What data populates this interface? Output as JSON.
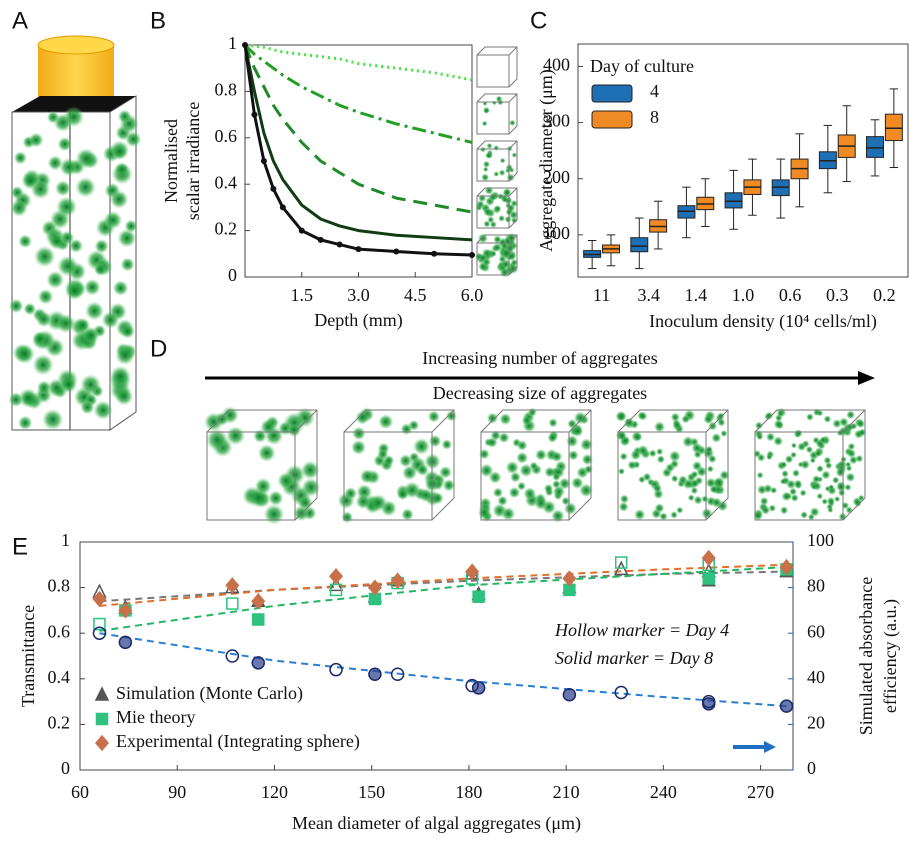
{
  "panel_labels": [
    "A",
    "B",
    "C",
    "D",
    "E"
  ],
  "panel_d": {
    "arrow_text": [
      "Increasing number of aggregates",
      "Decreasing size of aggregates"
    ]
  },
  "chart_data": [
    {
      "type": "line",
      "xlabel": "Depth (mm)",
      "ylabel": [
        "Normalised",
        "scalar irradiance"
      ],
      "x": [
        0,
        0.25,
        0.5,
        0.75,
        1,
        1.5,
        2,
        2.5,
        3,
        4,
        5,
        6
      ],
      "xlim": [
        0,
        6
      ],
      "ylim": [
        0,
        1
      ],
      "xticks": [
        1.5,
        {
          "value": 3,
          "label": "3.0"
        },
        4.5,
        {
          "value": 6,
          "label": "6.0"
        }
      ],
      "yticks": [
        0,
        0.2,
        0.4,
        0.6,
        0.8,
        1
      ],
      "series": [
        {
          "color": "#3ce63c",
          "style": "dotted",
          "values": [
            1,
            0.995,
            0.99,
            0.98,
            0.97,
            0.96,
            0.95,
            0.94,
            0.92,
            0.9,
            0.88,
            0.85
          ]
        },
        {
          "color": "#23a023",
          "style": "dashdot",
          "values": [
            1,
            0.96,
            0.93,
            0.9,
            0.87,
            0.82,
            0.78,
            0.74,
            0.71,
            0.66,
            0.62,
            0.58
          ]
        },
        {
          "color": "#1f8a28",
          "style": "dashed",
          "values": [
            1,
            0.9,
            0.82,
            0.74,
            0.68,
            0.58,
            0.5,
            0.45,
            0.4,
            0.34,
            0.31,
            0.28
          ]
        },
        {
          "color": "#123d14",
          "style": "solid",
          "values": [
            1,
            0.8,
            0.62,
            0.5,
            0.42,
            0.31,
            0.25,
            0.22,
            0.2,
            0.18,
            0.17,
            0.16
          ]
        },
        {
          "color": "#111111",
          "style": "markers",
          "values": [
            1,
            0.7,
            0.5,
            0.38,
            0.3,
            0.2,
            0.16,
            0.14,
            0.12,
            0.11,
            0.1,
            0.095
          ]
        }
      ]
    },
    {
      "type": "box",
      "legend_title": "Day of culture",
      "legend": "upper left",
      "xlabel": "Inoculum density (10⁴ cells/ml)",
      "ylabel": "Aggregate diameter (μm)",
      "categories": [
        "11",
        "3.4",
        "1.4",
        "1.0",
        "0.6",
        "0.3",
        "0.2"
      ],
      "ylim": [
        25,
        440
      ],
      "yticks": [
        100,
        200,
        300,
        400
      ],
      "series": [
        {
          "name": "4",
          "color": "#1f6fb5",
          "whislo": [
            40,
            40,
            95,
            110,
            130,
            175,
            205
          ],
          "q1": [
            60,
            70,
            130,
            148,
            170,
            218,
            238
          ],
          "median": [
            65,
            80,
            142,
            160,
            185,
            232,
            255
          ],
          "q3": [
            72,
            95,
            152,
            175,
            198,
            248,
            275
          ],
          "whishi": [
            90,
            130,
            185,
            215,
            235,
            295,
            305
          ]
        },
        {
          "name": "8",
          "color": "#f08a24",
          "whislo": [
            45,
            75,
            115,
            135,
            150,
            195,
            220
          ],
          "q1": [
            68,
            105,
            145,
            172,
            200,
            238,
            268
          ],
          "median": [
            75,
            115,
            155,
            185,
            218,
            258,
            290
          ],
          "q3": [
            82,
            127,
            167,
            198,
            235,
            278,
            315
          ],
          "whishi": [
            100,
            160,
            200,
            235,
            280,
            330,
            360
          ]
        }
      ]
    },
    {
      "type": "scatter",
      "legend": "lower left",
      "xlabel": "Mean diameter of algal aggregates (μm)",
      "ylabel": "Transmittance",
      "y2label": [
        "Simulated absorbance",
        "efficiency (a.u.)"
      ],
      "annotations": [
        "Hollow marker = Day 4",
        "Solid marker = Day 8"
      ],
      "xlim": [
        60,
        280
      ],
      "xticks": [
        60,
        90,
        120,
        150,
        180,
        210,
        240,
        270
      ],
      "ylim": [
        0,
        1
      ],
      "yticks": [
        0,
        0.2,
        0.4,
        0.6,
        0.8,
        1
      ],
      "y2lim": [
        0,
        100
      ],
      "y2ticks": [
        0,
        20,
        40,
        60,
        80,
        100
      ],
      "series": [
        {
          "style": "dashed",
          "color": "#777777",
          "x": [
            66,
            120,
            180,
            240,
            278
          ],
          "values": [
            0.74,
            0.79,
            0.83,
            0.86,
            0.87
          ]
        },
        {
          "style": "dashed",
          "color": "#e0702a",
          "x": [
            66,
            120,
            180,
            240,
            278
          ],
          "values": [
            0.72,
            0.79,
            0.84,
            0.88,
            0.9
          ]
        },
        {
          "style": "dashed",
          "color": "#22b860",
          "x": [
            66,
            120,
            180,
            240,
            278
          ],
          "values": [
            0.61,
            0.72,
            0.81,
            0.86,
            0.89
          ]
        },
        {
          "style": "dashed",
          "color": "#2a7fd0",
          "axis": "y2",
          "x": [
            66,
            120,
            180,
            240,
            278
          ],
          "values": [
            60,
            48,
            39,
            32,
            28
          ]
        },
        {
          "name": "Simulation (Monte Carlo)",
          "color": "#555555",
          "marker": "triangle",
          "filled": true,
          "x": [
            74,
            115,
            151,
            183,
            211,
            254,
            278
          ],
          "values": [
            0.71,
            0.74,
            0.76,
            0.77,
            0.8,
            0.83,
            0.87
          ]
        },
        {
          "color": "#555555",
          "marker": "triangle",
          "filled": false,
          "x": [
            66,
            107,
            139,
            158,
            181,
            227,
            254
          ],
          "values": [
            0.78,
            0.8,
            0.81,
            0.83,
            0.86,
            0.88,
            0.87
          ]
        },
        {
          "name": "Mie theory",
          "color": "#2ec27e",
          "marker": "square",
          "filled": true,
          "x": [
            74,
            115,
            151,
            183,
            211,
            254,
            278
          ],
          "values": [
            0.7,
            0.66,
            0.75,
            0.76,
            0.79,
            0.84,
            0.88
          ]
        },
        {
          "color": "#2ec27e",
          "marker": "square",
          "filled": false,
          "x": [
            66,
            107,
            139,
            158,
            181,
            227,
            254
          ],
          "values": [
            0.64,
            0.73,
            0.79,
            0.82,
            0.84,
            0.91,
            0.9
          ]
        },
        {
          "name": "Experimental (Integrating sphere)",
          "color": "#c8704a",
          "marker": "diamond",
          "filled": true,
          "x": [
            66,
            74,
            107,
            115,
            139,
            151,
            158,
            181,
            211,
            254,
            278
          ],
          "values": [
            0.75,
            0.7,
            0.81,
            0.74,
            0.85,
            0.8,
            0.83,
            0.87,
            0.84,
            0.93,
            0.89
          ]
        },
        {
          "color": "#2b3f8f",
          "marker": "circle",
          "filled": true,
          "axis": "y2",
          "x": [
            74,
            115,
            151,
            183,
            211,
            254,
            278
          ],
          "values": [
            56,
            47,
            42,
            36,
            33,
            29,
            28
          ]
        },
        {
          "color": "#2b3f8f",
          "marker": "circle",
          "filled": false,
          "axis": "y2",
          "x": [
            66,
            107,
            139,
            158,
            181,
            227,
            254
          ],
          "values": [
            60,
            50,
            44,
            42,
            37,
            34,
            30
          ]
        }
      ]
    }
  ]
}
